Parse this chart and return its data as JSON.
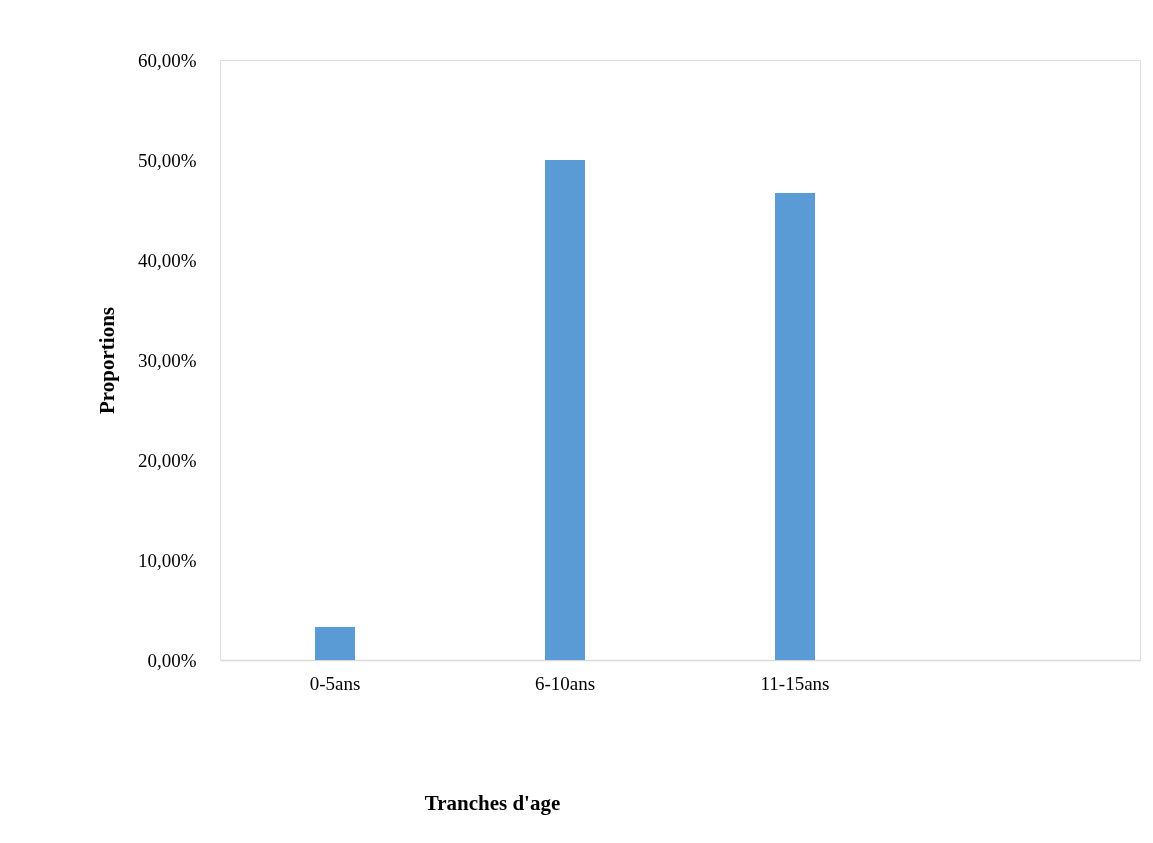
{
  "chart_data": {
    "type": "bar",
    "xlabel": "Tranches d'age",
    "ylabel": "Proportions",
    "categories": [
      "0-5ans",
      "6-10ans",
      "11-15ans",
      null
    ],
    "values": [
      3.3,
      50,
      46.7,
      null
    ],
    "color": "#5b9bd5",
    "ylim": [
      0,
      60
    ],
    "yticks": [
      {
        "value": 0,
        "label": "0,00%"
      },
      {
        "value": 10,
        "label": "10,00%"
      },
      {
        "value": 20,
        "label": "20,00%"
      },
      {
        "value": 30,
        "label": "30,00%"
      },
      {
        "value": 40,
        "label": "40,00%"
      },
      {
        "value": 50,
        "label": "50,00%"
      },
      {
        "value": 60,
        "label": "60,00%"
      }
    ],
    "grid": false
  }
}
